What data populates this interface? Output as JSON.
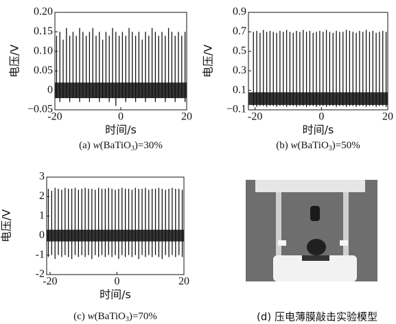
{
  "chart_data": [
    {
      "type": "spike",
      "xlabel": "时间/s",
      "ylabel": "电压/V",
      "caption": {
        "label": "(a) ",
        "var": "w",
        "formula": "(BaTiO",
        "sub": "3",
        "rest": ")=30%"
      },
      "color": "#111111",
      "band": [
        -0.02,
        0.02
      ],
      "xlim": [
        -20,
        20
      ],
      "xticks": [
        -20,
        0,
        20
      ],
      "ylim": [
        -0.05,
        0.2
      ],
      "yticks": [
        {
          "value": -0.05,
          "label": "−0.05"
        },
        0,
        0.05,
        {
          "value": 0.1,
          "label": "0.10"
        },
        0.15,
        {
          "value": 0.2,
          "label": "0.20"
        }
      ],
      "x": [
        -19.5,
        -18.5,
        -17.5,
        -16.5,
        -15.5,
        -14.5,
        -13.5,
        -12.5,
        -11.5,
        -10.5,
        -9.5,
        -8.5,
        -7.5,
        -6.5,
        -5.5,
        -4.5,
        -3.5,
        -2.5,
        -1.5,
        -0.5,
        0.5,
        1.5,
        2.5,
        3.5,
        4.5,
        5.5,
        6.5,
        7.5,
        8.5,
        9.5,
        10.5,
        11.5,
        12.5,
        13.5,
        14.5,
        15.5,
        16.5,
        17.5,
        18.5,
        19.5
      ],
      "values": [
        0.14,
        0.15,
        0.13,
        0.16,
        0.14,
        0.15,
        0.14,
        0.16,
        0.15,
        0.14,
        0.15,
        0.16,
        0.14,
        0.15,
        0.13,
        0.15,
        0.14,
        0.16,
        0.15,
        0.14,
        0.15,
        0.14,
        0.16,
        0.15,
        0.14,
        0.15,
        0.13,
        0.15,
        0.14,
        0.16,
        0.15,
        0.14,
        0.15,
        0.14,
        0.16,
        0.15,
        0.14,
        0.15,
        0.14,
        0.15
      ],
      "lows": [
        -0.02,
        -0.03,
        -0.02,
        -0.02,
        -0.03,
        -0.02,
        -0.02,
        -0.03,
        -0.02,
        -0.02,
        -0.03,
        -0.02,
        -0.02,
        -0.03,
        -0.02,
        -0.02,
        -0.03,
        -0.02,
        -0.04,
        -0.02,
        -0.02,
        -0.03,
        -0.02,
        -0.02,
        -0.03,
        -0.02,
        -0.02,
        -0.03,
        -0.02,
        -0.02,
        -0.03,
        -0.02,
        -0.02,
        -0.03,
        -0.02,
        -0.02,
        -0.03,
        -0.02,
        -0.02,
        -0.03
      ]
    },
    {
      "type": "spike",
      "xlabel": "时间/s",
      "ylabel": "电压/V",
      "caption": {
        "label": "(b) ",
        "var": "w",
        "formula": "(BaTiO",
        "sub": "3",
        "rest": ")=50%"
      },
      "color": "#111111",
      "band": [
        -0.05,
        0.08
      ],
      "xlim": [
        -22,
        20
      ],
      "xticks": [
        -20,
        0,
        20
      ],
      "ylim": [
        -0.1,
        0.9
      ],
      "yticks": [
        {
          "value": -0.1,
          "label": "−0.1"
        },
        0.1,
        0.3,
        0.5,
        0.7,
        0.9
      ],
      "x": [
        -20.5,
        -19.5,
        -18.5,
        -17.5,
        -16.5,
        -15.5,
        -14.5,
        -13.5,
        -12.5,
        -11.5,
        -10.5,
        -9.5,
        -8.5,
        -7.5,
        -6.5,
        -5.5,
        -4.5,
        -3.5,
        -2.5,
        -1.5,
        -0.5,
        0.5,
        1.5,
        2.5,
        3.5,
        4.5,
        5.5,
        6.5,
        7.5,
        8.5,
        9.5,
        10.5,
        11.5,
        12.5,
        13.5,
        14.5,
        15.5,
        16.5,
        17.5,
        18.5,
        19.5
      ],
      "values": [
        0.7,
        0.71,
        0.69,
        0.72,
        0.7,
        0.71,
        0.7,
        0.69,
        0.71,
        0.7,
        0.72,
        0.7,
        0.69,
        0.71,
        0.7,
        0.72,
        0.7,
        0.71,
        0.69,
        0.7,
        0.71,
        0.7,
        0.72,
        0.7,
        0.69,
        0.71,
        0.7,
        0.7,
        0.72,
        0.71,
        0.7,
        0.69,
        0.71,
        0.7,
        0.72,
        0.7,
        0.71,
        0.69,
        0.7,
        0.71,
        0.7
      ],
      "lows": [
        -0.06,
        -0.07,
        -0.06,
        -0.06,
        -0.07,
        -0.06,
        -0.06,
        -0.07,
        -0.06,
        -0.06,
        -0.07,
        -0.06,
        -0.06,
        -0.07,
        -0.06,
        -0.06,
        -0.07,
        -0.06,
        -0.06,
        -0.07,
        -0.06,
        -0.06,
        -0.07,
        -0.06,
        -0.06,
        -0.07,
        -0.06,
        -0.06,
        -0.07,
        -0.06,
        -0.06,
        -0.07,
        -0.06,
        -0.06,
        -0.07,
        -0.06,
        -0.06,
        -0.07,
        -0.06,
        -0.06,
        -0.07
      ]
    },
    {
      "type": "spike",
      "xlabel": "时间/s",
      "ylabel": "电压/V",
      "caption": {
        "label": "(c) ",
        "var": "w",
        "formula": "(BaTiO",
        "sub": "3",
        "rest": ")=70%"
      },
      "color": "#111111",
      "band": [
        -0.3,
        0.3
      ],
      "xlim": [
        -21,
        20
      ],
      "xticks": [
        -20,
        0,
        20
      ],
      "ylim": [
        -2,
        3
      ],
      "yticks": [
        -2,
        -1,
        0,
        1,
        2,
        3
      ],
      "x": [
        -20.5,
        -19.5,
        -18.5,
        -17.5,
        -16.5,
        -15.5,
        -14.5,
        -13.5,
        -12.5,
        -11.5,
        -10.5,
        -9.5,
        -8.5,
        -7.5,
        -6.5,
        -5.5,
        -4.5,
        -3.5,
        -2.5,
        -1.5,
        -0.5,
        0.5,
        1.5,
        2.5,
        3.5,
        4.5,
        5.5,
        6.5,
        7.5,
        8.5,
        9.5,
        10.5,
        11.5,
        12.5,
        13.5,
        14.5,
        15.5,
        16.5,
        17.5,
        18.5,
        19.5
      ],
      "values": [
        2.4,
        2.3,
        2.45,
        2.4,
        2.35,
        2.45,
        2.4,
        2.4,
        2.45,
        2.35,
        2.4,
        2.45,
        2.4,
        2.4,
        2.35,
        2.45,
        2.4,
        2.4,
        2.45,
        2.4,
        2.35,
        2.4,
        2.45,
        2.4,
        2.4,
        2.35,
        2.45,
        2.4,
        2.4,
        2.45,
        2.35,
        2.4,
        2.4,
        2.45,
        2.4,
        2.35,
        2.4,
        2.45,
        2.4,
        2.4,
        2.35
      ],
      "lows": [
        -1.1,
        -1,
        -1.2,
        -1,
        -1.1,
        -1,
        -1.1,
        -1.2,
        -1,
        -1.1,
        -1,
        -1.1,
        -1,
        -1.2,
        -1,
        -1.1,
        -1,
        -1.1,
        -1,
        -1.1,
        -1,
        -1.2,
        -1,
        -1.1,
        -1,
        -1.1,
        -1,
        -1.2,
        -1,
        -1.1,
        -1,
        -1.1,
        -1,
        -1.1,
        -1.2,
        -1,
        -1.1,
        -1,
        -1.1,
        -1,
        -1.1
      ]
    }
  ],
  "photo": {
    "caption": "(d) 压电薄膜敲击实验模型"
  }
}
